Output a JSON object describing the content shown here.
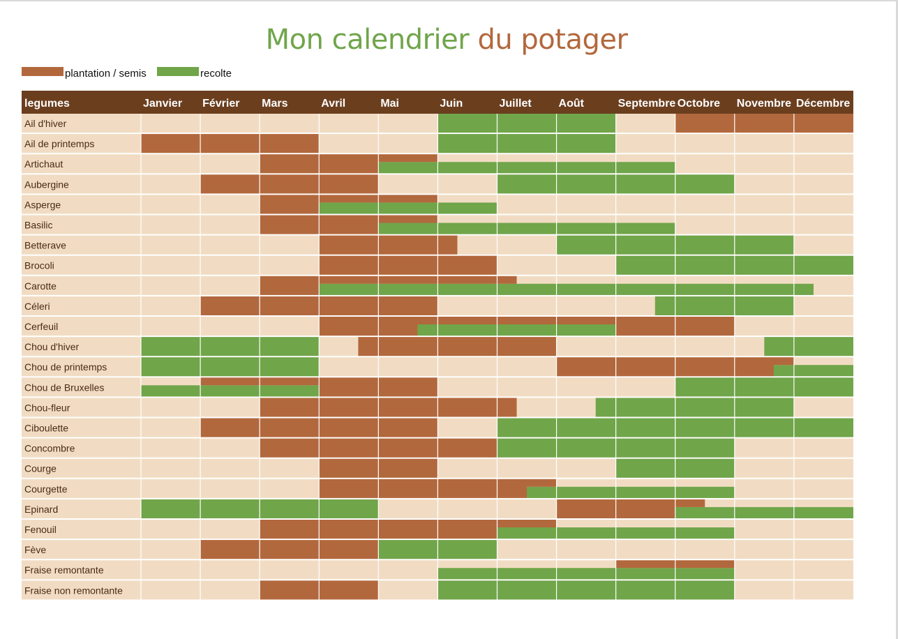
{
  "colors": {
    "header_bg": "#6b3e1e",
    "header_text": "#ffffff",
    "cell_bg": "#f1dcc3",
    "plantation": "#b2683d",
    "recolte": "#70a54a",
    "grid": "#ffffff",
    "row_text": "#4a2a12"
  },
  "title": {
    "part1": "Mon calendrier",
    "part2": "du potager"
  },
  "legend": [
    {
      "label": "plantation / semis",
      "color": "#b2683d"
    },
    {
      "label": "recolte",
      "color": "#70a54a"
    }
  ],
  "chart_data": {
    "type": "table",
    "header_first": "legumes",
    "months": [
      "Janvier",
      "Février",
      "Mars",
      "Avril",
      "Mai",
      "Juin",
      "Juillet",
      "Août",
      "Septembre",
      "Octobre",
      "Novembre",
      "Décembre"
    ],
    "x_unit": "mois (début de janvier = 0, fin de décembre = 12)",
    "rows": [
      {
        "name": "Ail d'hiver",
        "plantation": [
          [
            9,
            12
          ]
        ],
        "recolte": [
          [
            5,
            8
          ]
        ]
      },
      {
        "name": "Ail de printemps",
        "plantation": [
          [
            0,
            3
          ]
        ],
        "recolte": [
          [
            5,
            8
          ]
        ]
      },
      {
        "name": "Artichaut",
        "plantation": [
          [
            2,
            5
          ]
        ],
        "recolte": [
          [
            4,
            9
          ]
        ]
      },
      {
        "name": "Aubergine",
        "plantation": [
          [
            1,
            4
          ]
        ],
        "recolte": [
          [
            6,
            10
          ]
        ]
      },
      {
        "name": "Asperge",
        "plantation": [
          [
            2,
            5
          ]
        ],
        "recolte": [
          [
            3,
            6
          ]
        ]
      },
      {
        "name": "Basilic",
        "plantation": [
          [
            2,
            5
          ]
        ],
        "recolte": [
          [
            4,
            9
          ]
        ]
      },
      {
        "name": "Betterave",
        "plantation": [
          [
            3,
            5.33
          ]
        ],
        "recolte": [
          [
            7,
            11
          ]
        ]
      },
      {
        "name": "Brocoli",
        "plantation": [
          [
            3,
            6
          ]
        ],
        "recolte": [
          [
            8,
            12
          ]
        ]
      },
      {
        "name": "Carotte",
        "plantation": [
          [
            2,
            6.33
          ]
        ],
        "recolte": [
          [
            3,
            11.33
          ]
        ]
      },
      {
        "name": "Céleri",
        "plantation": [
          [
            1,
            5
          ]
        ],
        "recolte": [
          [
            8.66,
            11
          ]
        ]
      },
      {
        "name": "Cerfeuil",
        "plantation": [
          [
            3,
            10
          ]
        ],
        "recolte": [
          [
            4.66,
            8
          ]
        ]
      },
      {
        "name": "Chou d'hiver",
        "plantation": [
          [
            3.66,
            7
          ]
        ],
        "recolte": [
          [
            0,
            3
          ],
          [
            10.5,
            12
          ]
        ]
      },
      {
        "name": "Chou de printemps",
        "plantation": [
          [
            7,
            11
          ]
        ],
        "recolte": [
          [
            0,
            3
          ],
          [
            10.66,
            12
          ]
        ]
      },
      {
        "name": "Chou de Bruxelles",
        "plantation": [
          [
            1,
            5
          ]
        ],
        "recolte": [
          [
            0,
            3
          ],
          [
            9,
            12
          ]
        ]
      },
      {
        "name": "Chou-fleur",
        "plantation": [
          [
            2,
            6.33
          ]
        ],
        "recolte": [
          [
            7.66,
            11
          ]
        ]
      },
      {
        "name": "Ciboulette",
        "plantation": [
          [
            1,
            5
          ]
        ],
        "recolte": [
          [
            6,
            12
          ]
        ]
      },
      {
        "name": "Concombre",
        "plantation": [
          [
            2,
            6
          ]
        ],
        "recolte": [
          [
            6,
            10
          ]
        ]
      },
      {
        "name": "Courge",
        "plantation": [
          [
            3,
            5
          ]
        ],
        "recolte": [
          [
            8,
            10
          ]
        ]
      },
      {
        "name": "Courgette",
        "plantation": [
          [
            3,
            7
          ]
        ],
        "recolte": [
          [
            6.5,
            10
          ]
        ]
      },
      {
        "name": "Epinard",
        "plantation": [
          [
            7,
            9.5
          ]
        ],
        "recolte": [
          [
            0,
            4
          ],
          [
            9,
            12
          ]
        ]
      },
      {
        "name": "Fenouil",
        "plantation": [
          [
            2,
            7
          ]
        ],
        "recolte": [
          [
            6,
            10
          ]
        ]
      },
      {
        "name": "Fève",
        "plantation": [
          [
            1,
            4
          ]
        ],
        "recolte": [
          [
            4,
            6
          ]
        ]
      },
      {
        "name": "Fraise remontante",
        "plantation": [
          [
            8,
            10
          ]
        ],
        "recolte": [
          [
            5,
            10
          ]
        ]
      },
      {
        "name": "Fraise non remontante",
        "plantation": [
          [
            2,
            4
          ]
        ],
        "recolte": [
          [
            5,
            10
          ]
        ]
      }
    ]
  }
}
